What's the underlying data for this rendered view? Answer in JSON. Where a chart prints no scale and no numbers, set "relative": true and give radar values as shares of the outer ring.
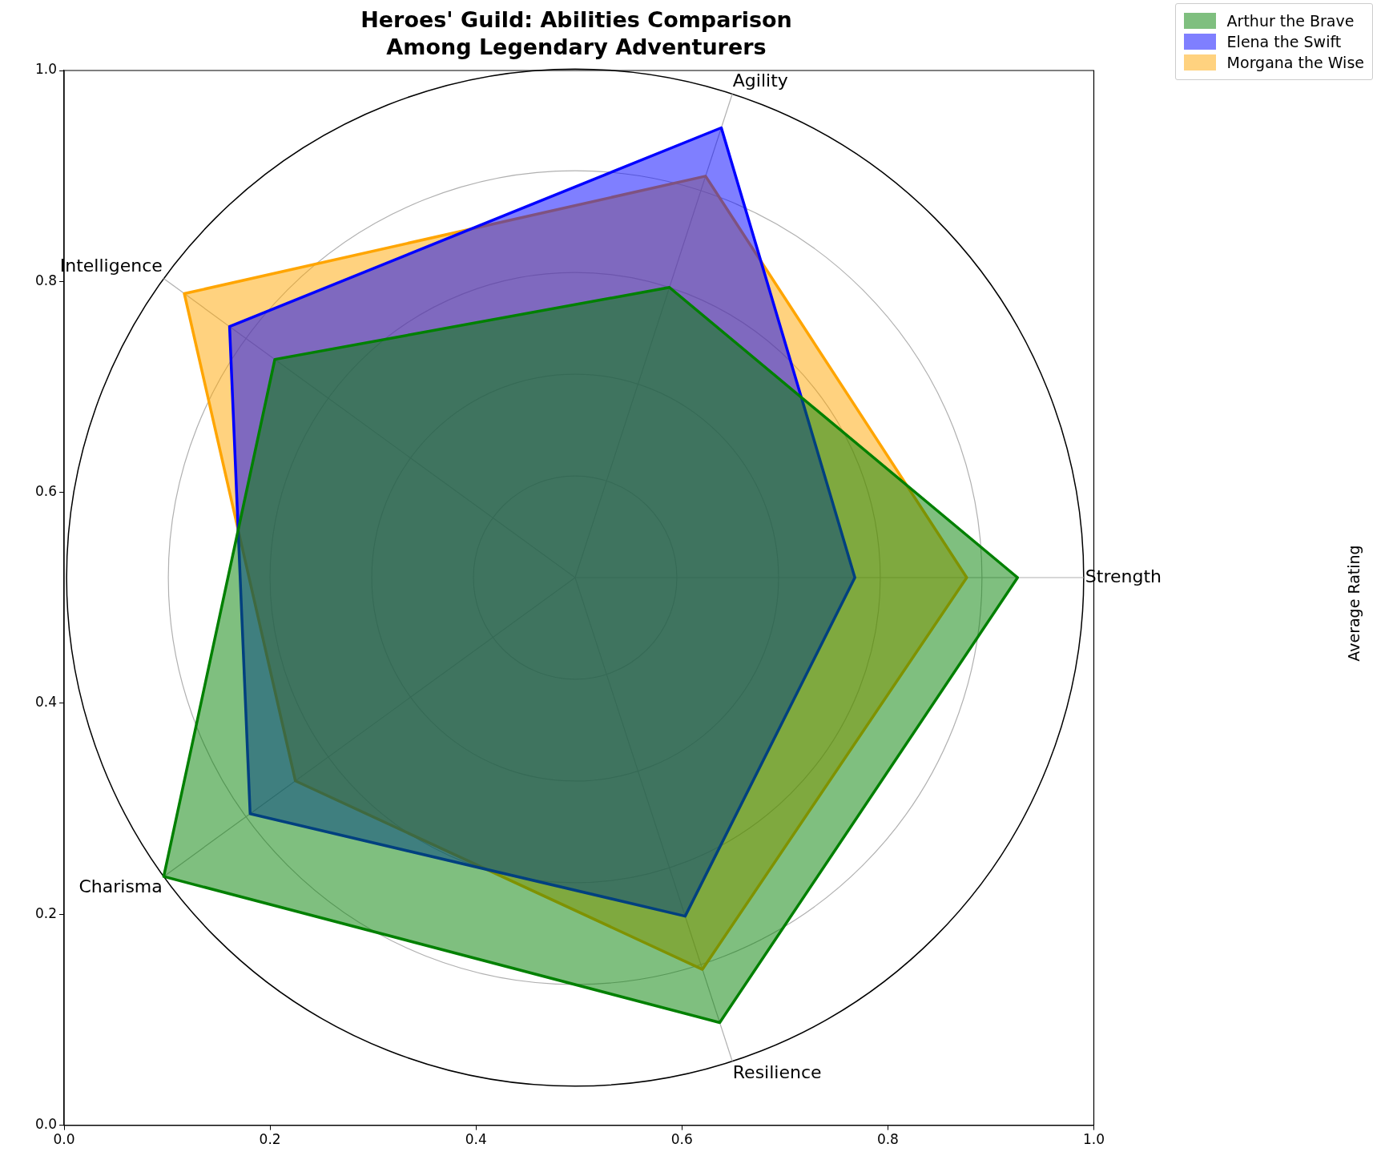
{
  "chart_data": [
    {
      "type": "radar",
      "title": "Heroes' Guild: Abilities Comparison\nAmong Legendary Adventurers",
      "categories": [
        "Agility",
        "Strength",
        "Resilience",
        "Charisma",
        "Intelligence"
      ],
      "relative": true,
      "grid": true,
      "legend": "top right",
      "series": [
        {
          "name": "Arthur the Brave",
          "color": "#008000",
          "values": [
            0.6,
            0.87,
            0.92,
            1.0,
            0.73
          ]
        },
        {
          "name": "Elena the Swift",
          "color": "#0000ff",
          "values": [
            0.93,
            0.55,
            0.7,
            0.79,
            0.84
          ]
        },
        {
          "name": "Morgana the Wise",
          "color": "#ffa500",
          "values": [
            0.83,
            0.77,
            0.81,
            0.68,
            0.95
          ]
        }
      ]
    },
    {
      "type": "scatter",
      "ylabel": "Average Rating",
      "grid": false,
      "xlim": [
        0,
        1
      ],
      "xticks": [
        {
          "value": 0,
          "label": "0.0"
        },
        {
          "value": 0.2,
          "label": "0.2"
        },
        {
          "value": 0.4,
          "label": "0.4"
        },
        {
          "value": 0.6,
          "label": "0.6"
        },
        {
          "value": 0.8,
          "label": "0.8"
        },
        {
          "value": 1,
          "label": "1.0"
        }
      ],
      "ylim": [
        0,
        1
      ],
      "yticks": [
        {
          "value": 0,
          "label": "0.0"
        },
        {
          "value": 0.2,
          "label": "0.2"
        },
        {
          "value": 0.4,
          "label": "0.4"
        },
        {
          "value": 0.6,
          "label": "0.6"
        },
        {
          "value": 0.8,
          "label": "0.8"
        },
        {
          "value": 1,
          "label": "1.0"
        }
      ]
    }
  ]
}
